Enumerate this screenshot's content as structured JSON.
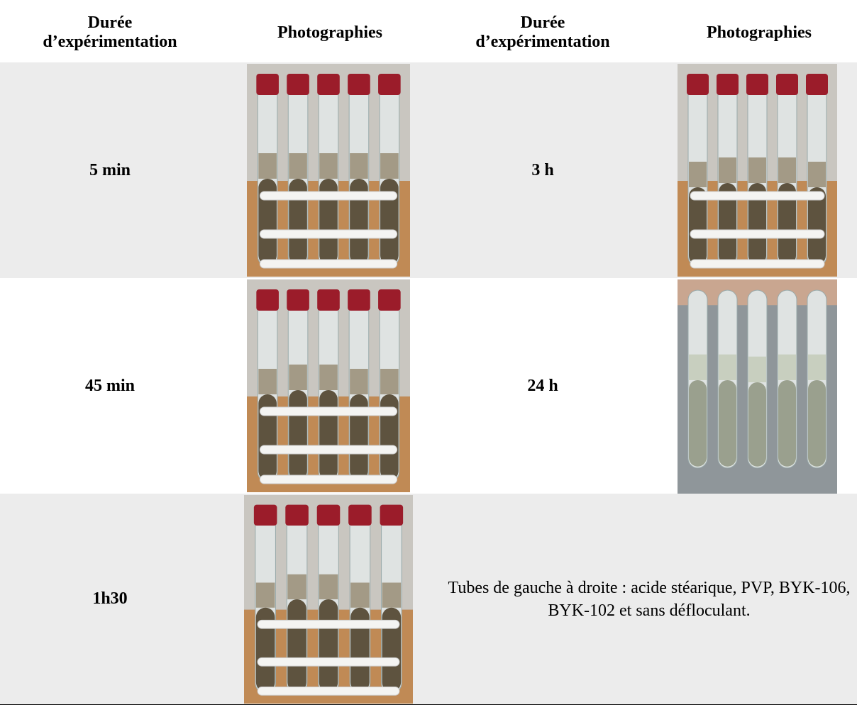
{
  "table": {
    "header": [
      "Durée d’expérimentation",
      "Photographies",
      "Durée d’expérimentation",
      "Photographies"
    ],
    "rows": [
      [
        "5 min",
        "3 h"
      ],
      [
        "45 min",
        "24 h"
      ],
      [
        "1h30"
      ]
    ],
    "note": "Tubes de gauche à droite : acide stéarique, PVP, BYK-106, BYK-102 et sans défloculant."
  }
}
